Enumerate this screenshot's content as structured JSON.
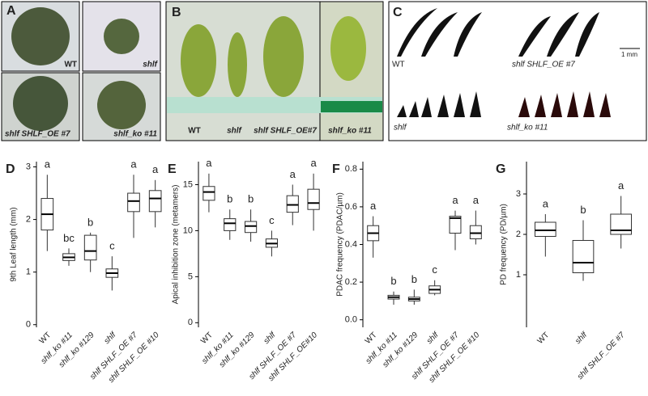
{
  "photo_panels": [
    {
      "label": "A",
      "captions": [
        "WT",
        "shlf",
        "shlf SHLF_OE #7",
        "shlf_ko #11"
      ]
    },
    {
      "label": "B",
      "captions": [
        "WT",
        "shlf",
        "shlf SHLF_OE#7",
        "shlf_ko #11"
      ]
    },
    {
      "label": "C",
      "captions": [
        "WT",
        "shlf SHLF_OE #7",
        "shlf",
        "shlf_ko #11"
      ],
      "scale_bar": "1 mm"
    }
  ],
  "chart_data": [
    {
      "type": "box",
      "label": "D",
      "y_label": "9th Leaf length (mm)",
      "categories": [
        "WT",
        "shlf_ko #11",
        "shlf_ko #129",
        "shlf",
        "shlf SHLF_OE #7",
        "shlf SHLF_OE #10"
      ],
      "letters": [
        "a",
        "bc",
        "b",
        "c",
        "a",
        "a"
      ],
      "boxes": [
        {
          "min": 1.4,
          "q1": 1.8,
          "median": 2.1,
          "q3": 2.4,
          "max": 2.85
        },
        {
          "min": 1.12,
          "q1": 1.22,
          "median": 1.28,
          "q3": 1.35,
          "max": 1.45
        },
        {
          "min": 1.0,
          "q1": 1.23,
          "median": 1.4,
          "q3": 1.7,
          "max": 1.75
        },
        {
          "min": 0.65,
          "q1": 0.9,
          "median": 0.98,
          "q3": 1.06,
          "max": 1.3
        },
        {
          "min": 1.65,
          "q1": 2.15,
          "median": 2.35,
          "q3": 2.5,
          "max": 2.85
        },
        {
          "min": 1.85,
          "q1": 2.15,
          "median": 2.4,
          "q3": 2.55,
          "max": 2.75
        }
      ],
      "ylim": [
        -0.05,
        3.1
      ],
      "yticks": [
        0,
        1,
        2,
        3
      ]
    },
    {
      "type": "box",
      "label": "E",
      "y_label": "Apical inhibition zone (metamers)",
      "categories": [
        "WT",
        "shlf_ko #11",
        "shlf_ko #129",
        "shlf",
        "shlf SHLF_OE #7",
        "shlf SHLF_OE#10"
      ],
      "letters": [
        "a",
        "b",
        "b",
        "c",
        "a",
        "a"
      ],
      "boxes": [
        {
          "min": 12,
          "q1": 13.3,
          "median": 14.2,
          "q3": 14.8,
          "max": 16.2
        },
        {
          "min": 9,
          "q1": 10,
          "median": 10.8,
          "q3": 11.3,
          "max": 12.3
        },
        {
          "min": 8.8,
          "q1": 9.8,
          "median": 10.5,
          "q3": 11,
          "max": 12.3
        },
        {
          "min": 7.2,
          "q1": 8.2,
          "median": 8.6,
          "q3": 9.1,
          "max": 10
        },
        {
          "min": 10.6,
          "q1": 12,
          "median": 12.8,
          "q3": 13.8,
          "max": 15
        },
        {
          "min": 10,
          "q1": 12.3,
          "median": 13,
          "q3": 14.5,
          "max": 16.2
        }
      ],
      "ylim": [
        -0.5,
        17.5
      ],
      "yticks": [
        0,
        5,
        10,
        15
      ]
    },
    {
      "type": "box",
      "label": "F",
      "y_label": "PDAC frequency (PDAC/µm)",
      "categories": [
        "WT",
        "shlf_ko #11",
        "shlf_ko #129",
        "shlf",
        "shlf SHLF_OE #7",
        "shlf SHLF_OE #10"
      ],
      "letters": [
        "a",
        "b",
        "b",
        "c",
        "a",
        "a"
      ],
      "boxes": [
        {
          "min": 0.33,
          "q1": 0.42,
          "median": 0.46,
          "q3": 0.5,
          "max": 0.55
        },
        {
          "min": 0.08,
          "q1": 0.11,
          "median": 0.12,
          "q3": 0.13,
          "max": 0.15
        },
        {
          "min": 0.08,
          "q1": 0.1,
          "median": 0.11,
          "q3": 0.12,
          "max": 0.16
        },
        {
          "min": 0.13,
          "q1": 0.14,
          "median": 0.16,
          "q3": 0.18,
          "max": 0.21
        },
        {
          "min": 0.37,
          "q1": 0.46,
          "median": 0.54,
          "q3": 0.55,
          "max": 0.58
        },
        {
          "min": 0.4,
          "q1": 0.43,
          "median": 0.46,
          "q3": 0.5,
          "max": 0.58
        }
      ],
      "ylim": [
        -0.04,
        0.84
      ],
      "yticks": [
        {
          "value": 0,
          "label": "0.0"
        },
        0.2,
        0.4,
        0.6,
        0.8
      ]
    },
    {
      "type": "box",
      "label": "G",
      "y_label": "PD frequency (PD/µm)",
      "categories": [
        "WT",
        "shlf",
        "shlf SHLF_OE #7"
      ],
      "letters": [
        "a",
        "b",
        "a"
      ],
      "boxes": [
        {
          "min": 1.45,
          "q1": 1.95,
          "median": 2.1,
          "q3": 2.3,
          "max": 2.5
        },
        {
          "min": 0.85,
          "q1": 1.05,
          "median": 1.3,
          "q3": 1.85,
          "max": 2.35
        },
        {
          "min": 1.65,
          "q1": 2,
          "median": 2.1,
          "q3": 2.5,
          "max": 2.95
        }
      ],
      "ylim": [
        -0.3,
        3.8
      ],
      "yticks": [
        1,
        2,
        3
      ]
    }
  ]
}
